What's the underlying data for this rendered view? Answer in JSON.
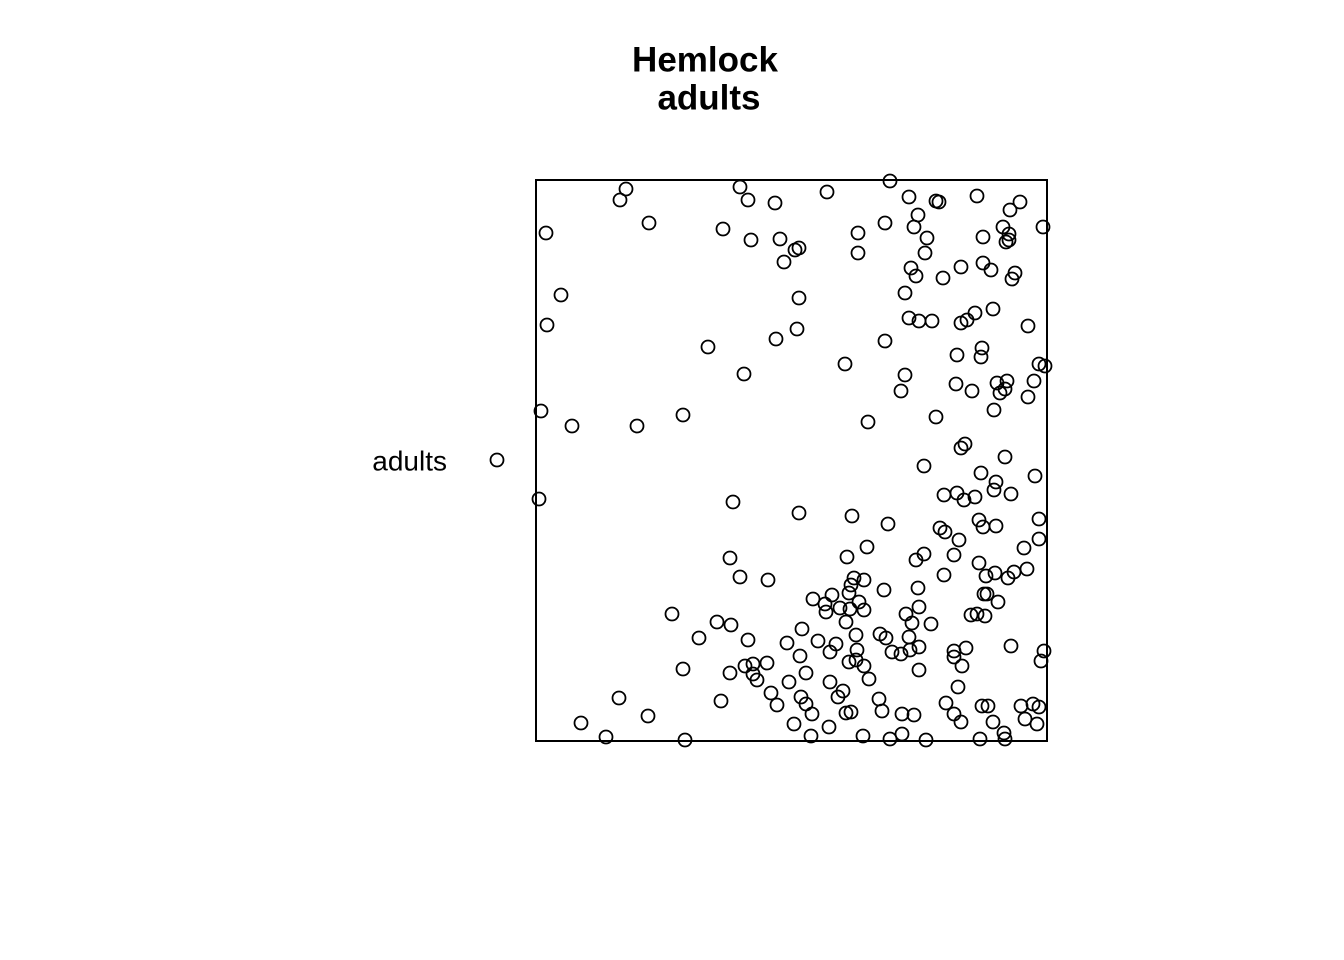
{
  "chart_data": {
    "type": "scatter",
    "title": "Hemlock",
    "subtitle": "adults",
    "xlim": [
      0,
      511
    ],
    "ylim": [
      0,
      561
    ],
    "series": [
      {
        "name": "adults",
        "color": "#000000",
        "x": [
          90,
          84,
          204,
          212,
          239,
          291,
          354,
          373,
          400,
          403,
          441,
          484,
          474,
          382,
          378,
          349,
          322,
          322,
          391,
          389,
          507,
          467,
          473,
          470,
          473,
          447,
          10,
          113,
          187,
          215,
          244,
          259,
          263,
          248,
          25,
          11,
          263,
          261,
          240,
          172,
          208,
          375,
          380,
          407,
          425,
          447,
          455,
          479,
          476,
          369,
          373,
          383,
          396,
          425,
          431,
          439,
          457,
          492,
          349,
          309,
          369,
          365,
          421,
          446,
          445,
          503,
          509,
          420,
          436,
          461,
          471,
          498,
          464,
          469,
          492,
          458,
          400,
          332,
          5,
          36,
          101,
          147,
          425,
          429,
          469,
          388,
          445,
          499,
          460,
          458,
          475,
          408,
          421,
          428,
          439,
          3,
          197,
          263,
          316,
          352,
          404,
          409,
          423,
          443,
          447,
          460,
          503,
          503,
          488,
          331,
          311,
          380,
          388,
          418,
          443,
          194,
          204,
          232,
          318,
          328,
          315,
          313,
          296,
          277,
          289,
          290,
          304,
          314,
          323,
          328,
          310,
          348,
          382,
          408,
          450,
          459,
          478,
          491,
          472,
          448,
          451,
          462,
          435,
          441,
          449,
          383,
          370,
          376,
          395,
          136,
          181,
          195,
          163,
          212,
          251,
          266,
          282,
          300,
          294,
          320,
          321,
          344,
          350,
          373,
          374,
          383,
          356,
          365,
          430,
          418,
          418,
          475,
          508,
          505,
          264,
          313,
          320,
          328,
          333,
          383,
          426,
          147,
          194,
          209,
          217,
          217,
          231,
          221,
          270,
          253,
          235,
          241,
          265,
          270,
          276,
          258,
          294,
          307,
          302,
          310,
          315,
          343,
          346,
          366,
          378,
          293,
          275,
          327,
          354,
          366,
          390,
          422,
          410,
          418,
          425,
          446,
          452,
          457,
          468,
          469,
          444,
          485,
          497,
          503,
          489,
          501,
          185,
          83,
          112,
          45,
          70,
          149
        ],
        "values": [
          552,
          541,
          554,
          541,
          538,
          549,
          560,
          544,
          540,
          539,
          545,
          539,
          531,
          526,
          514,
          518,
          508,
          488,
          503,
          488,
          514,
          514,
          507,
          499,
          501,
          504,
          508,
          518,
          512,
          501,
          502,
          491,
          493,
          479,
          446,
          416,
          443,
          412,
          402,
          394,
          367,
          473,
          465,
          463,
          474,
          478,
          471,
          468,
          462,
          448,
          423,
          420,
          420,
          418,
          421,
          428,
          432,
          415,
          400,
          377,
          366,
          350,
          386,
          393,
          384,
          377,
          375,
          357,
          350,
          358,
          360,
          360,
          348,
          352,
          344,
          331,
          324,
          319,
          330,
          315,
          315,
          326,
          293,
          297,
          284,
          275,
          268,
          265,
          259,
          251,
          247,
          246,
          248,
          241,
          244,
          242,
          239,
          228,
          225,
          217,
          213,
          209,
          201,
          221,
          214,
          215,
          222,
          202,
          193,
          194,
          184,
          181,
          187,
          186,
          178,
          183,
          164,
          161,
          163,
          161,
          156,
          148,
          146,
          142,
          137,
          129,
          133,
          132,
          139,
          131,
          119,
          151,
          153,
          166,
          165,
          168,
          169,
          172,
          163,
          147,
          147,
          139,
          126,
          127,
          125,
          134,
          127,
          118,
          117,
          127,
          119,
          116,
          103,
          101,
          98,
          112,
          100,
          97,
          89,
          106,
          91,
          107,
          103,
          104,
          91,
          94,
          89,
          87,
          93,
          90,
          84,
          95,
          90,
          80,
          85,
          79,
          81,
          75,
          62,
          71,
          75,
          72,
          68,
          75,
          77,
          67,
          78,
          61,
          68,
          59,
          48,
          36,
          44,
          37,
          27,
          17,
          59,
          50,
          44,
          28,
          29,
          42,
          30,
          27,
          26,
          14,
          5,
          5,
          2,
          7,
          1,
          54,
          38,
          27,
          19,
          35,
          35,
          19,
          8,
          2,
          2,
          35,
          37,
          34,
          22,
          17,
          40,
          43,
          25,
          18,
          4,
          1
        ]
      }
    ]
  }
}
